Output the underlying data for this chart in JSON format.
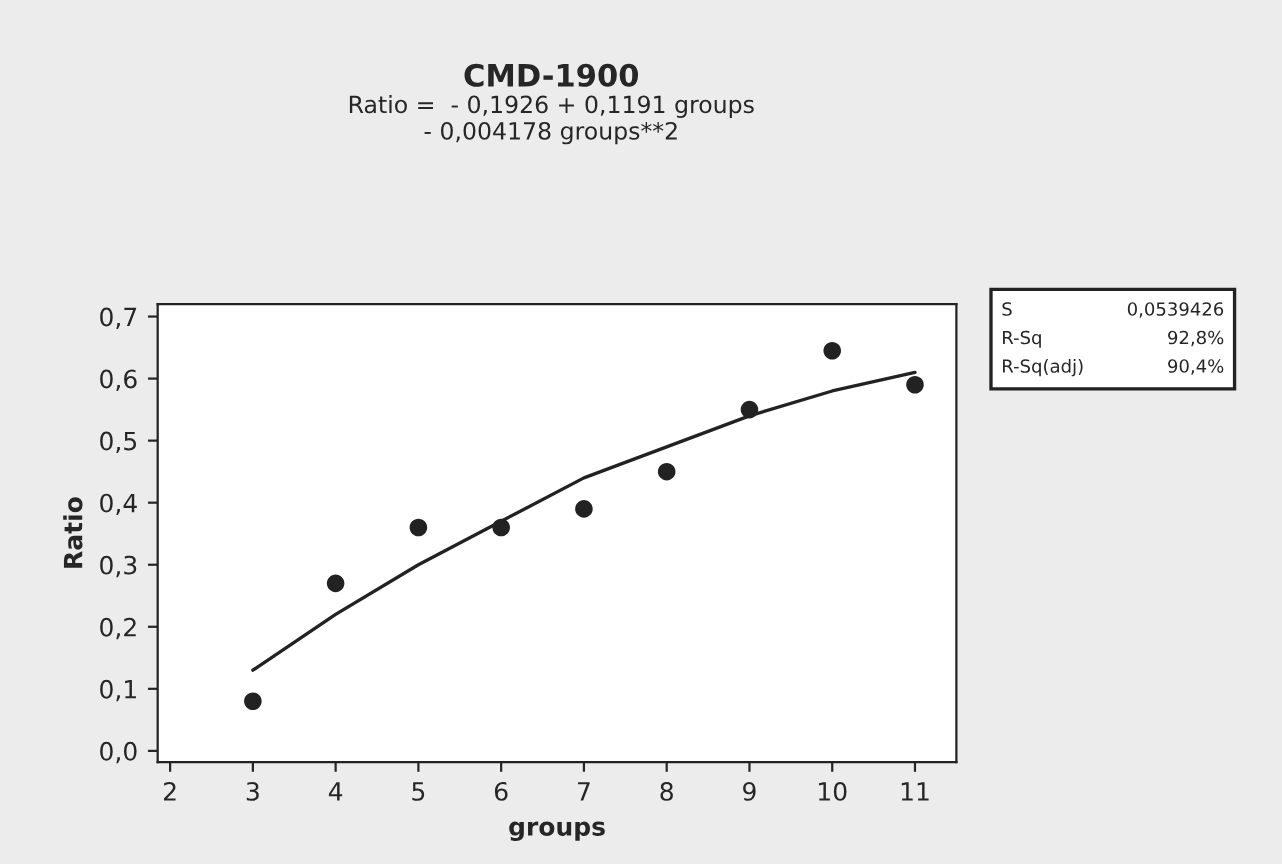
{
  "chart_data": {
    "type": "scatter",
    "title": "CMD-1900",
    "subtitle": "Ratio =  - 0,1926 + 0,1191 groups\n- 0,004178 groups**2",
    "xlabel": "groups",
    "ylabel": "Ratio",
    "x": [
      3,
      4,
      5,
      6,
      7,
      8,
      9,
      10,
      11
    ],
    "series": [
      {
        "color": "#222222",
        "marker": "circle",
        "values": [
          0.08,
          0.27,
          0.36,
          0.36,
          0.39,
          0.45,
          0.55,
          0.645,
          0.59
        ]
      },
      {
        "type": "line",
        "color": "#222222",
        "marker": "none",
        "line_style": "solid",
        "x": [
          3,
          4,
          5,
          6,
          7,
          8,
          9,
          10,
          11
        ],
        "values": [
          0.13,
          0.22,
          0.3,
          0.37,
          0.44,
          0.49,
          0.54,
          0.58,
          0.61
        ]
      }
    ],
    "xlim": [
      1.85,
      11.5
    ],
    "xticks": [
      2,
      3,
      4,
      5,
      6,
      7,
      8,
      9,
      10,
      11
    ],
    "ylim": [
      -0.018,
      0.72
    ],
    "yticks": [
      {
        "value": 0,
        "label": "0,0"
      },
      {
        "value": 0.1,
        "label": "0,1"
      },
      {
        "value": 0.2,
        "label": "0,2"
      },
      {
        "value": 0.3,
        "label": "0,3"
      },
      {
        "value": 0.4,
        "label": "0,4"
      },
      {
        "value": 0.5,
        "label": "0,5"
      },
      {
        "value": 0.6,
        "label": "0,6"
      },
      {
        "value": 0.7,
        "label": "0,7"
      }
    ],
    "annotations": [
      "S",
      "0,0539426",
      "R-Sq",
      "92,8%",
      "R-Sq(adj)",
      "90,4%"
    ],
    "grid": false,
    "legend": false
  }
}
